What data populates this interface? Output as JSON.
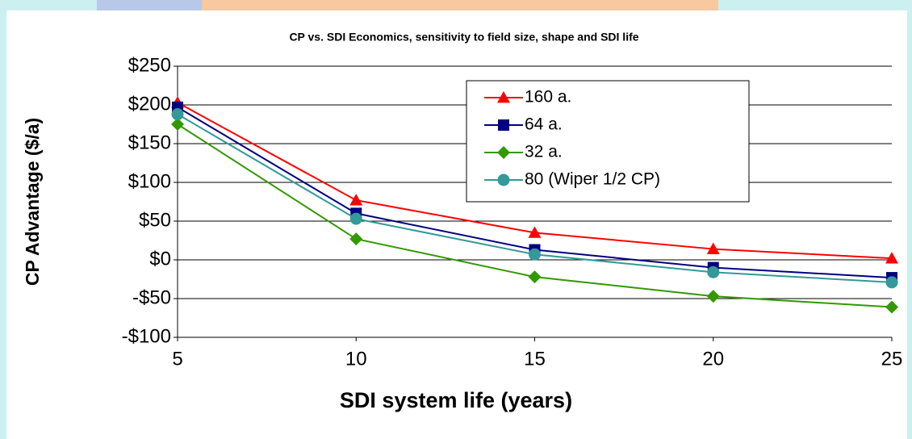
{
  "chart_data": {
    "type": "line",
    "title": "CP vs. SDI Economics, sensitivity to field size, shape and SDI life",
    "xlabel": "SDI system life (years)",
    "ylabel": "CP Advantage ($/a)",
    "x": [
      5,
      10,
      15,
      20,
      25
    ],
    "xlim": [
      5,
      25
    ],
    "xticks": [
      5,
      10,
      15,
      20,
      25
    ],
    "ylim": [
      -100,
      250
    ],
    "yticks": [
      {
        "value": -100,
        "label": "-$100"
      },
      {
        "value": -50,
        "label": "-$50"
      },
      {
        "value": 0,
        "label": "$0"
      },
      {
        "value": 50,
        "label": "$50"
      },
      {
        "value": 100,
        "label": "$100"
      },
      {
        "value": 150,
        "label": "$150"
      },
      {
        "value": 200,
        "label": "$200"
      },
      {
        "value": 250,
        "label": "$250"
      }
    ],
    "grid": true,
    "legend": "upper right",
    "series": [
      {
        "name": "160 a.",
        "color": "#ff0000",
        "marker": "triangle",
        "values": [
          203,
          77,
          35,
          14,
          2
        ]
      },
      {
        "name": "64 a.",
        "color": "#000080",
        "marker": "square",
        "values": [
          197,
          60,
          13,
          -10,
          -23
        ]
      },
      {
        "name": "32 a.",
        "color": "#339900",
        "marker": "diamond",
        "values": [
          175,
          27,
          -22,
          -47,
          -61
        ]
      },
      {
        "name": "80 (Wiper 1/2 CP)",
        "color": "#339999",
        "marker": "circle",
        "values": [
          188,
          53,
          7,
          -16,
          -29
        ]
      }
    ]
  }
}
